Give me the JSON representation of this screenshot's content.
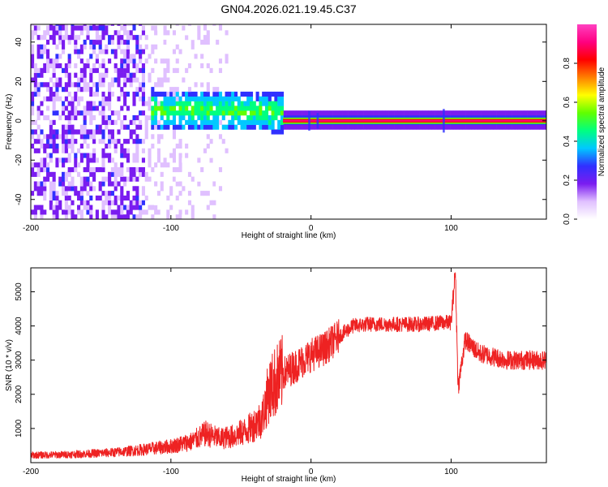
{
  "title": "GN04.2026.021.19.45.C37",
  "chart_data": [
    {
      "type": "heatmap",
      "title": "GN04.2026.021.19.45.C37",
      "xlabel": "Height of straight line (km)",
      "ylabel": "Frequency (Hz)",
      "xlim": [
        -200,
        168
      ],
      "ylim": [
        -50,
        49
      ],
      "xticks": [
        -200,
        -100,
        0,
        100
      ],
      "xtick_labels": [
        "-200",
        "-100",
        "0",
        "100"
      ],
      "yticks": [
        -40,
        -20,
        0,
        20,
        40
      ],
      "ytick_labels": [
        "-40",
        "-20",
        "0",
        "20",
        "40"
      ],
      "colorbar": {
        "label": "Normalized spectral amplitude",
        "range": [
          0,
          1
        ],
        "ticks": [
          0.0,
          0.2,
          0.4,
          0.6,
          0.8
        ],
        "tick_labels": [
          "0.0",
          "0.2",
          "0.4",
          "0.6",
          "0.8"
        ],
        "colormap": [
          "#ffffff",
          "#e0c0ff",
          "#7a1cf0",
          "#3030ff",
          "#00c8ff",
          "#00ff80",
          "#60ff00",
          "#ffff00",
          "#ff8000",
          "#ff0000",
          "#ff0080",
          "#ff40c0"
        ]
      },
      "regions": [
        {
          "x_range": [
            -200,
            -120
          ],
          "description": "dense purple noise, amplitude",
          "amplitude": 0.15
        },
        {
          "x_range": [
            -120,
            -60
          ],
          "description": "sparse faint noise",
          "amplitude": 0.05
        },
        {
          "x_range": [
            -110,
            -20
          ],
          "freq_center": 3,
          "amplitude": 0.35
        },
        {
          "x_range": [
            -20,
            168
          ],
          "freq_center": 0,
          "amplitude": 0.95
        }
      ]
    },
    {
      "type": "line",
      "xlabel": "Height of straight line (km)",
      "ylabel": "SNR (10 * v/v)",
      "xlim": [
        -200,
        168
      ],
      "ylim": [
        0,
        5700
      ],
      "xticks": [
        -200,
        -100,
        0,
        100
      ],
      "xtick_labels": [
        "-200",
        "-100",
        "0",
        "100"
      ],
      "yticks": [
        1000,
        2000,
        3000,
        4000,
        5000
      ],
      "ytick_labels": [
        "1000",
        "2000",
        "3000",
        "4000",
        "5000"
      ],
      "color": "#ee2222",
      "series": [
        {
          "name": "SNR",
          "x": [
            -200,
            -180,
            -160,
            -140,
            -120,
            -100,
            -85,
            -75,
            -65,
            -55,
            -45,
            -35,
            -30,
            -25,
            -20,
            -10,
            0,
            10,
            20,
            30,
            40,
            60,
            80,
            95,
            100,
            103,
            105,
            110,
            120,
            140,
            168
          ],
          "y": [
            220,
            230,
            260,
            300,
            380,
            480,
            620,
            850,
            700,
            780,
            960,
            1300,
            2100,
            2400,
            2600,
            2850,
            3150,
            3350,
            3700,
            4000,
            4050,
            4050,
            4050,
            4100,
            4100,
            5600,
            2200,
            3600,
            3200,
            3000,
            3000
          ]
        }
      ]
    }
  ]
}
